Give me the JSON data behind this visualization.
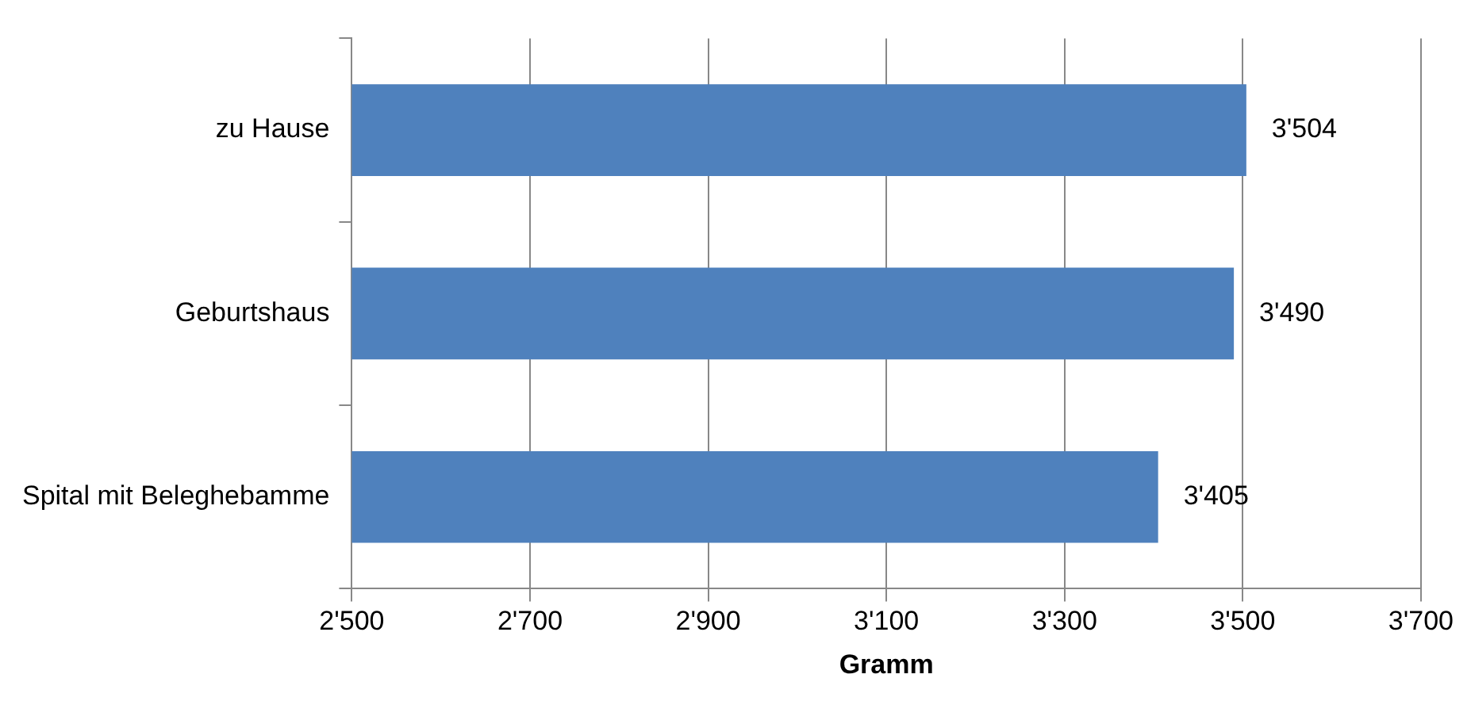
{
  "chart_data": {
    "type": "bar",
    "orientation": "horizontal",
    "categories": [
      "zu Hause",
      "Geburtshaus",
      "Spital mit Beleghebamme"
    ],
    "values": [
      3504,
      3490,
      3405
    ],
    "color": "#4f81bd",
    "value_labels": [
      "3'504",
      "3'490",
      "3'405"
    ],
    "xlabel": "Gramm",
    "xlim": [
      2500,
      3700
    ],
    "xticks": [
      {
        "value": 2500,
        "label": "2'500"
      },
      {
        "value": 2700,
        "label": "2'700"
      },
      {
        "value": 2900,
        "label": "2'900"
      },
      {
        "value": 3100,
        "label": "3'100"
      },
      {
        "value": 3300,
        "label": "3'300"
      },
      {
        "value": 3500,
        "label": "3'500"
      },
      {
        "value": 3700,
        "label": "3'700"
      }
    ],
    "grid": "x",
    "legend": false
  }
}
